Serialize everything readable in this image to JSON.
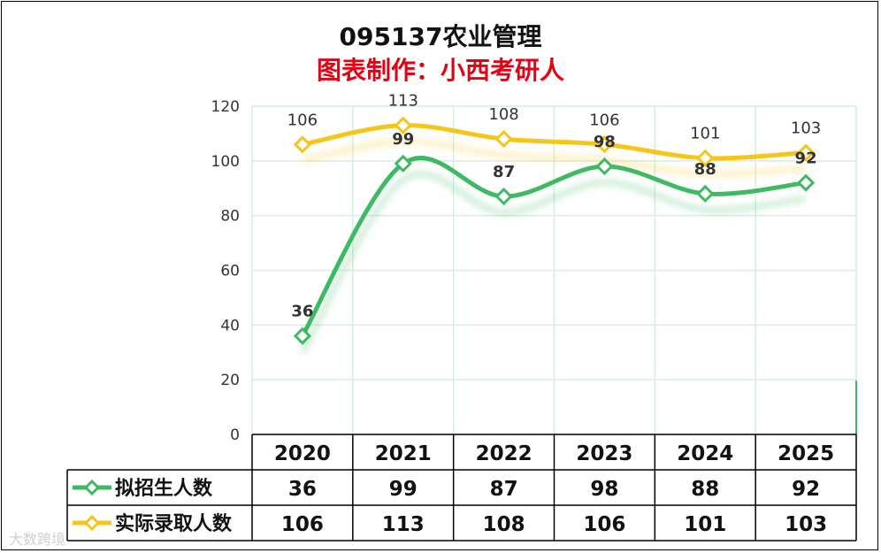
{
  "chart_data": {
    "type": "line",
    "title": "095137农业管理",
    "subtitle": "图表制作：小西考研人",
    "categories": [
      "2020",
      "2021",
      "2022",
      "2023",
      "2024",
      "2025"
    ],
    "ylim": [
      0,
      120
    ],
    "yticks": [
      0,
      20,
      40,
      60,
      80,
      100,
      120
    ],
    "grid": true,
    "legend": "data-table",
    "series": [
      {
        "name": "拟招生人数",
        "color": "#3dba63",
        "values": [
          36,
          99,
          87,
          98,
          88,
          92
        ]
      },
      {
        "name": "实际录取人数",
        "color": "#f5c518",
        "values": [
          106,
          113,
          108,
          106,
          101,
          103
        ]
      }
    ]
  },
  "watermark": "大数跨境"
}
